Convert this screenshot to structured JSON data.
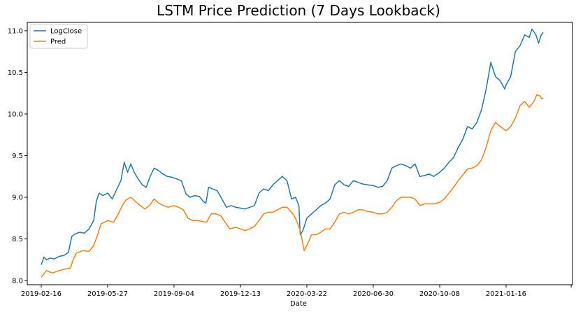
{
  "chart_data": {
    "type": "line",
    "title": "LSTM Price Prediction (7 Days Lookback)",
    "xlabel": "Date",
    "ylabel": "",
    "ylim": [
      7.95,
      11.1
    ],
    "xlim": [
      "2019-01-26",
      "2021-04-26"
    ],
    "grid": false,
    "legend_position": "upper-left",
    "x_ticks": [
      "2019-02-16",
      "2019-05-27",
      "2019-09-04",
      "2019-12-13",
      "2020-03-22",
      "2020-06-30",
      "2020-10-08",
      "2021-01-16"
    ],
    "y_ticks": [
      8.0,
      8.5,
      9.0,
      9.5,
      10.0,
      10.5,
      11.0
    ],
    "series": [
      {
        "name": "LogClose",
        "color": "#1f77b4",
        "points": [
          [
            "2019-02-16",
            8.19
          ],
          [
            "2019-02-20",
            8.28
          ],
          [
            "2019-02-24",
            8.25
          ],
          [
            "2019-03-01",
            8.27
          ],
          [
            "2019-03-08",
            8.26
          ],
          [
            "2019-03-15",
            8.29
          ],
          [
            "2019-03-22",
            8.3
          ],
          [
            "2019-03-29",
            8.34
          ],
          [
            "2019-04-03",
            8.53
          ],
          [
            "2019-04-08",
            8.56
          ],
          [
            "2019-04-15",
            8.58
          ],
          [
            "2019-04-22",
            8.57
          ],
          [
            "2019-04-29",
            8.62
          ],
          [
            "2019-05-06",
            8.72
          ],
          [
            "2019-05-10",
            8.95
          ],
          [
            "2019-05-14",
            9.05
          ],
          [
            "2019-05-20",
            9.02
          ],
          [
            "2019-05-27",
            9.05
          ],
          [
            "2019-06-03",
            8.98
          ],
          [
            "2019-06-10",
            9.1
          ],
          [
            "2019-06-16",
            9.2
          ],
          [
            "2019-06-21",
            9.42
          ],
          [
            "2019-06-26",
            9.3
          ],
          [
            "2019-07-01",
            9.4
          ],
          [
            "2019-07-06",
            9.3
          ],
          [
            "2019-07-12",
            9.22
          ],
          [
            "2019-07-18",
            9.15
          ],
          [
            "2019-07-24",
            9.12
          ],
          [
            "2019-07-30",
            9.25
          ],
          [
            "2019-08-05",
            9.35
          ],
          [
            "2019-08-12",
            9.32
          ],
          [
            "2019-08-18",
            9.28
          ],
          [
            "2019-08-25",
            9.25
          ],
          [
            "2019-09-01",
            9.24
          ],
          [
            "2019-09-08",
            9.22
          ],
          [
            "2019-09-15",
            9.2
          ],
          [
            "2019-09-22",
            9.04
          ],
          [
            "2019-09-28",
            9.0
          ],
          [
            "2019-10-05",
            9.02
          ],
          [
            "2019-10-12",
            9.01
          ],
          [
            "2019-10-18",
            8.95
          ],
          [
            "2019-10-22",
            8.93
          ],
          [
            "2019-10-26",
            9.12
          ],
          [
            "2019-11-01",
            9.1
          ],
          [
            "2019-11-08",
            9.08
          ],
          [
            "2019-11-15",
            8.98
          ],
          [
            "2019-11-22",
            8.88
          ],
          [
            "2019-11-29",
            8.9
          ],
          [
            "2019-12-06",
            8.88
          ],
          [
            "2019-12-13",
            8.87
          ],
          [
            "2019-12-20",
            8.86
          ],
          [
            "2019-12-27",
            8.88
          ],
          [
            "2020-01-03",
            8.9
          ],
          [
            "2020-01-10",
            9.05
          ],
          [
            "2020-01-17",
            9.1
          ],
          [
            "2020-01-24",
            9.08
          ],
          [
            "2020-01-31",
            9.15
          ],
          [
            "2020-02-07",
            9.2
          ],
          [
            "2020-02-14",
            9.25
          ],
          [
            "2020-02-21",
            9.2
          ],
          [
            "2020-02-28",
            8.98
          ],
          [
            "2020-03-05",
            9.0
          ],
          [
            "2020-03-10",
            8.9
          ],
          [
            "2020-03-12",
            8.55
          ],
          [
            "2020-03-16",
            8.6
          ],
          [
            "2020-03-22",
            8.75
          ],
          [
            "2020-03-29",
            8.8
          ],
          [
            "2020-04-05",
            8.85
          ],
          [
            "2020-04-12",
            8.9
          ],
          [
            "2020-04-19",
            8.93
          ],
          [
            "2020-04-26",
            8.98
          ],
          [
            "2020-05-03",
            9.15
          ],
          [
            "2020-05-10",
            9.2
          ],
          [
            "2020-05-17",
            9.15
          ],
          [
            "2020-05-24",
            9.13
          ],
          [
            "2020-05-31",
            9.2
          ],
          [
            "2020-06-07",
            9.18
          ],
          [
            "2020-06-14",
            9.16
          ],
          [
            "2020-06-21",
            9.15
          ],
          [
            "2020-06-30",
            9.14
          ],
          [
            "2020-07-07",
            9.12
          ],
          [
            "2020-07-14",
            9.13
          ],
          [
            "2020-07-21",
            9.2
          ],
          [
            "2020-07-28",
            9.35
          ],
          [
            "2020-08-04",
            9.38
          ],
          [
            "2020-08-11",
            9.4
          ],
          [
            "2020-08-18",
            9.38
          ],
          [
            "2020-08-25",
            9.35
          ],
          [
            "2020-09-01",
            9.4
          ],
          [
            "2020-09-08",
            9.25
          ],
          [
            "2020-09-15",
            9.26
          ],
          [
            "2020-09-22",
            9.28
          ],
          [
            "2020-09-29",
            9.25
          ],
          [
            "2020-10-08",
            9.3
          ],
          [
            "2020-10-15",
            9.35
          ],
          [
            "2020-10-22",
            9.42
          ],
          [
            "2020-10-29",
            9.48
          ],
          [
            "2020-11-05",
            9.6
          ],
          [
            "2020-11-12",
            9.7
          ],
          [
            "2020-11-19",
            9.85
          ],
          [
            "2020-11-26",
            9.82
          ],
          [
            "2020-12-03",
            9.9
          ],
          [
            "2020-12-10",
            10.05
          ],
          [
            "2020-12-17",
            10.3
          ],
          [
            "2020-12-24",
            10.62
          ],
          [
            "2020-12-31",
            10.45
          ],
          [
            "2021-01-07",
            10.4
          ],
          [
            "2021-01-14",
            10.3
          ],
          [
            "2021-01-16",
            10.35
          ],
          [
            "2021-01-23",
            10.45
          ],
          [
            "2021-01-30",
            10.75
          ],
          [
            "2021-02-06",
            10.82
          ],
          [
            "2021-02-13",
            10.95
          ],
          [
            "2021-02-20",
            10.92
          ],
          [
            "2021-02-24",
            11.02
          ],
          [
            "2021-03-02",
            10.95
          ],
          [
            "2021-03-06",
            10.85
          ],
          [
            "2021-03-10",
            10.95
          ],
          [
            "2021-03-13",
            10.98
          ]
        ]
      },
      {
        "name": "Pred",
        "color": "#ff7f0e",
        "points": [
          [
            "2019-02-16",
            8.04
          ],
          [
            "2019-02-24",
            8.12
          ],
          [
            "2019-03-05",
            8.09
          ],
          [
            "2019-03-15",
            8.12
          ],
          [
            "2019-03-25",
            8.14
          ],
          [
            "2019-04-01",
            8.15
          ],
          [
            "2019-04-05",
            8.25
          ],
          [
            "2019-04-10",
            8.33
          ],
          [
            "2019-04-20",
            8.36
          ],
          [
            "2019-04-29",
            8.35
          ],
          [
            "2019-05-06",
            8.42
          ],
          [
            "2019-05-12",
            8.55
          ],
          [
            "2019-05-17",
            8.68
          ],
          [
            "2019-05-27",
            8.72
          ],
          [
            "2019-06-05",
            8.7
          ],
          [
            "2019-06-12",
            8.8
          ],
          [
            "2019-06-18",
            8.9
          ],
          [
            "2019-06-24",
            8.97
          ],
          [
            "2019-07-01",
            9.0
          ],
          [
            "2019-07-08",
            8.95
          ],
          [
            "2019-07-15",
            8.9
          ],
          [
            "2019-07-22",
            8.86
          ],
          [
            "2019-07-29",
            8.9
          ],
          [
            "2019-08-05",
            8.98
          ],
          [
            "2019-08-12",
            8.93
          ],
          [
            "2019-08-19",
            8.9
          ],
          [
            "2019-08-26",
            8.88
          ],
          [
            "2019-09-04",
            8.9
          ],
          [
            "2019-09-11",
            8.88
          ],
          [
            "2019-09-18",
            8.85
          ],
          [
            "2019-09-25",
            8.75
          ],
          [
            "2019-10-02",
            8.72
          ],
          [
            "2019-10-09",
            8.72
          ],
          [
            "2019-10-16",
            8.71
          ],
          [
            "2019-10-23",
            8.7
          ],
          [
            "2019-10-30",
            8.8
          ],
          [
            "2019-11-06",
            8.8
          ],
          [
            "2019-11-13",
            8.78
          ],
          [
            "2019-11-20",
            8.7
          ],
          [
            "2019-11-27",
            8.62
          ],
          [
            "2019-12-06",
            8.64
          ],
          [
            "2019-12-13",
            8.62
          ],
          [
            "2019-12-20",
            8.6
          ],
          [
            "2019-12-27",
            8.62
          ],
          [
            "2020-01-03",
            8.65
          ],
          [
            "2020-01-10",
            8.72
          ],
          [
            "2020-01-17",
            8.8
          ],
          [
            "2020-01-24",
            8.82
          ],
          [
            "2020-01-31",
            8.82
          ],
          [
            "2020-02-07",
            8.85
          ],
          [
            "2020-02-14",
            8.88
          ],
          [
            "2020-02-21",
            8.88
          ],
          [
            "2020-02-28",
            8.82
          ],
          [
            "2020-03-05",
            8.75
          ],
          [
            "2020-03-12",
            8.6
          ],
          [
            "2020-03-18",
            8.36
          ],
          [
            "2020-03-22",
            8.42
          ],
          [
            "2020-03-29",
            8.55
          ],
          [
            "2020-04-05",
            8.55
          ],
          [
            "2020-04-12",
            8.58
          ],
          [
            "2020-04-19",
            8.62
          ],
          [
            "2020-04-26",
            8.62
          ],
          [
            "2020-05-03",
            8.7
          ],
          [
            "2020-05-10",
            8.8
          ],
          [
            "2020-05-17",
            8.82
          ],
          [
            "2020-05-24",
            8.8
          ],
          [
            "2020-05-31",
            8.82
          ],
          [
            "2020-06-07",
            8.85
          ],
          [
            "2020-06-14",
            8.85
          ],
          [
            "2020-06-21",
            8.83
          ],
          [
            "2020-06-30",
            8.82
          ],
          [
            "2020-07-07",
            8.8
          ],
          [
            "2020-07-14",
            8.8
          ],
          [
            "2020-07-21",
            8.82
          ],
          [
            "2020-07-28",
            8.88
          ],
          [
            "2020-08-04",
            8.96
          ],
          [
            "2020-08-11",
            9.0
          ],
          [
            "2020-08-18",
            9.0
          ],
          [
            "2020-08-25",
            9.0
          ],
          [
            "2020-09-01",
            8.98
          ],
          [
            "2020-09-08",
            8.9
          ],
          [
            "2020-09-15",
            8.92
          ],
          [
            "2020-09-22",
            8.92
          ],
          [
            "2020-09-29",
            8.92
          ],
          [
            "2020-10-08",
            8.94
          ],
          [
            "2020-10-15",
            8.98
          ],
          [
            "2020-10-22",
            9.05
          ],
          [
            "2020-10-29",
            9.12
          ],
          [
            "2020-11-05",
            9.2
          ],
          [
            "2020-11-12",
            9.27
          ],
          [
            "2020-11-19",
            9.34
          ],
          [
            "2020-11-26",
            9.35
          ],
          [
            "2020-12-03",
            9.38
          ],
          [
            "2020-12-10",
            9.45
          ],
          [
            "2020-12-17",
            9.6
          ],
          [
            "2020-12-24",
            9.8
          ],
          [
            "2020-12-31",
            9.9
          ],
          [
            "2021-01-07",
            9.85
          ],
          [
            "2021-01-16",
            9.8
          ],
          [
            "2021-01-23",
            9.85
          ],
          [
            "2021-01-30",
            9.95
          ],
          [
            "2021-02-06",
            10.1
          ],
          [
            "2021-02-13",
            10.15
          ],
          [
            "2021-02-20",
            10.08
          ],
          [
            "2021-02-27",
            10.15
          ],
          [
            "2021-03-03",
            10.23
          ],
          [
            "2021-03-08",
            10.22
          ],
          [
            "2021-03-11",
            10.18
          ],
          [
            "2021-03-13",
            10.19
          ]
        ]
      }
    ]
  }
}
